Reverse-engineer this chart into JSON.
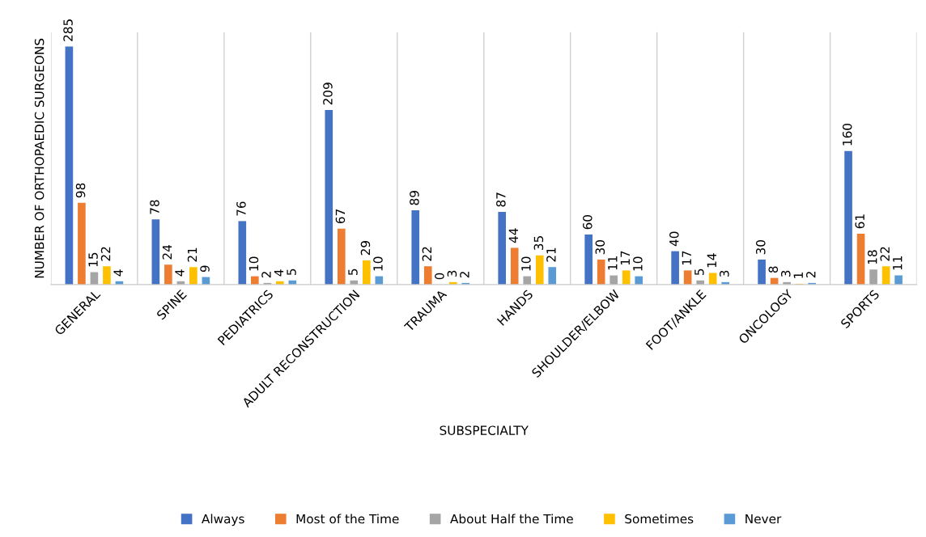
{
  "chart_data": {
    "type": "bar",
    "xlabel": "SUBSPECIALTY",
    "ylabel": "NUMBER OF ORTHOPAEDIC SURGEONS",
    "categories": [
      "GENERAL",
      "SPINE",
      "PEDIATRICS",
      "ADULT RECONSTRUCTION",
      "TRAUMA",
      "HANDS",
      "SHOULDER/ELBOW",
      "FOOT/ANKLE",
      "ONCOLOGY",
      "SPORTS"
    ],
    "series": [
      {
        "name": "Always",
        "color": "#4472c4",
        "values": [
          285,
          78,
          76,
          209,
          89,
          87,
          60,
          40,
          30,
          160
        ]
      },
      {
        "name": "Most of the Time",
        "color": "#ed7d31",
        "values": [
          98,
          24,
          10,
          67,
          22,
          44,
          30,
          17,
          8,
          61
        ]
      },
      {
        "name": "About Half the Time",
        "color": "#a5a5a5",
        "values": [
          15,
          4,
          2,
          5,
          0,
          10,
          11,
          5,
          3,
          18
        ]
      },
      {
        "name": "Sometimes",
        "color": "#ffc000",
        "values": [
          22,
          21,
          4,
          29,
          3,
          35,
          17,
          14,
          1,
          22
        ]
      },
      {
        "name": "Never",
        "color": "#5b9bd5",
        "values": [
          4,
          9,
          5,
          10,
          2,
          21,
          10,
          3,
          2,
          11
        ]
      }
    ],
    "data_labels": true,
    "grid": "x",
    "legend": "bottom",
    "tick_labels": "x"
  }
}
